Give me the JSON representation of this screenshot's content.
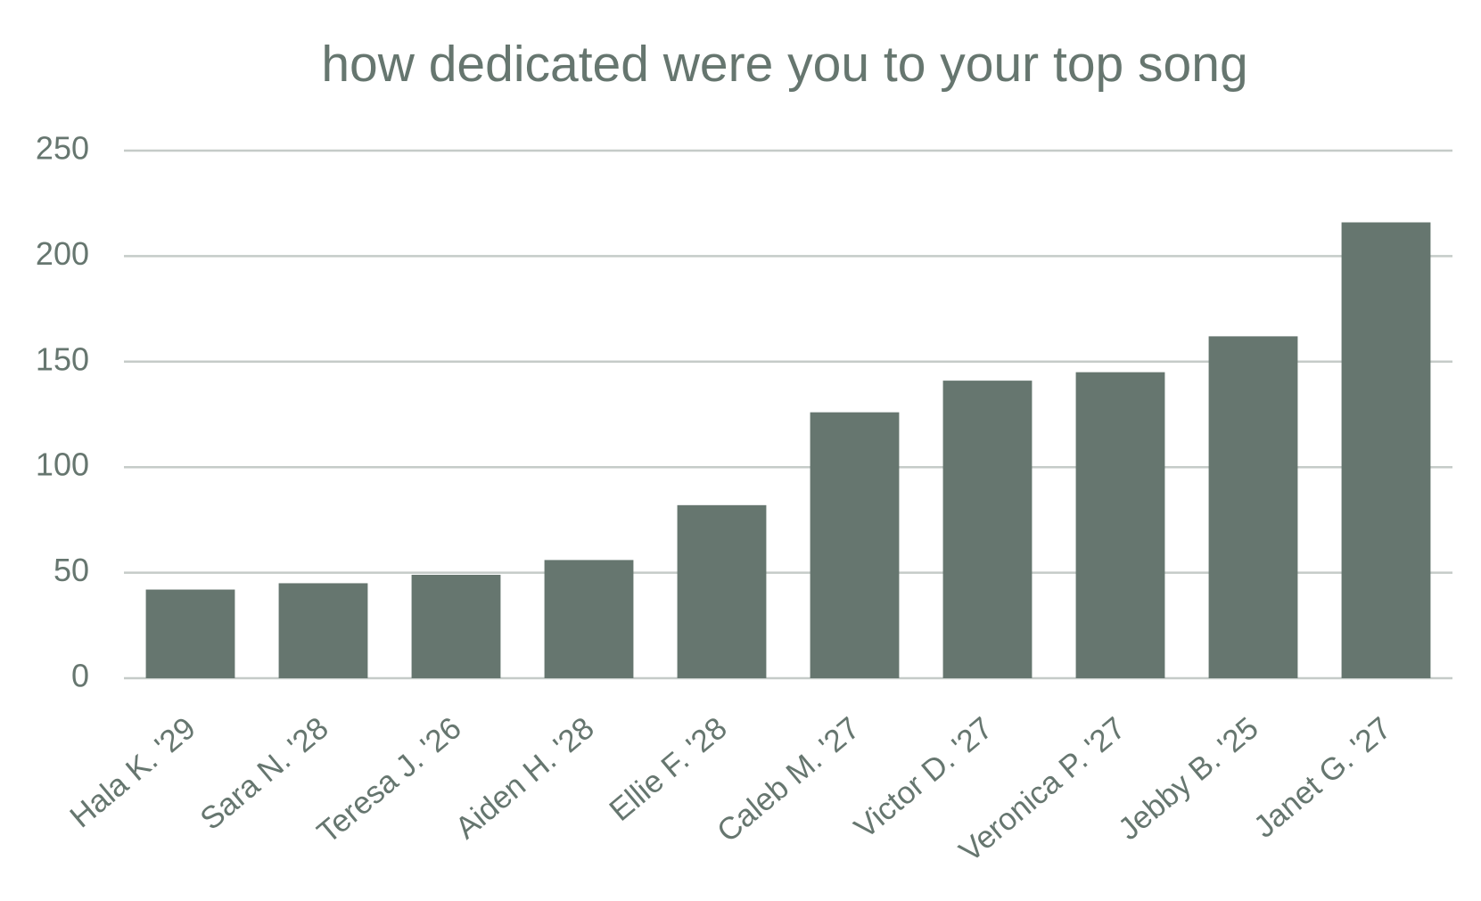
{
  "chart_data": {
    "type": "bar",
    "title": "how dedicated were you to your top song",
    "categories": [
      "Hala K. '29",
      "Sara N. '28",
      "Teresa J. '26",
      "Aiden H. '28",
      "Ellie F. '28",
      "Caleb M. '27",
      "Victor D. '27",
      "Veronica P. '27",
      "Jebby B. '25",
      "Janet G. '27"
    ],
    "values": [
      42,
      45,
      49,
      56,
      82,
      126,
      141,
      145,
      162,
      216
    ],
    "color": "#66766f",
    "ylim": [
      0,
      250
    ],
    "yticks": [
      0,
      50,
      100,
      150,
      200,
      250
    ],
    "grid": true
  }
}
